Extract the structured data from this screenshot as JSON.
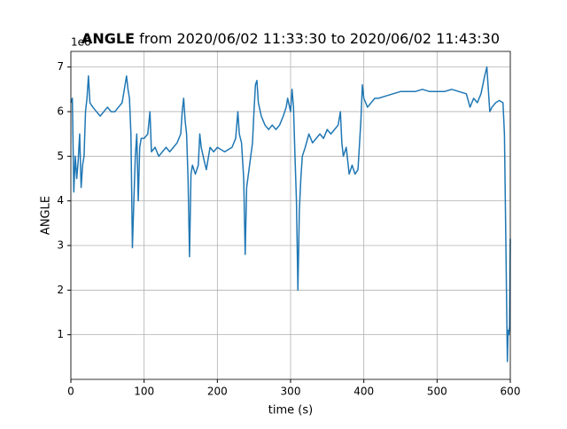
{
  "chart_data": {
    "type": "line",
    "title_bold": "ANGLE",
    "title": " from 2020/06/02 11:33:30 to 2020/06/02 11:43:30",
    "xlabel": "time (s)",
    "ylabel": "ANGLE",
    "y_offset_label": "1e6",
    "xlim": [
      0,
      600
    ],
    "xticks": [
      0,
      100,
      200,
      300,
      400,
      500,
      600
    ],
    "ylim": [
      0.0,
      7.35
    ],
    "yticks": [
      1,
      2,
      3,
      4,
      5,
      6,
      7
    ],
    "grid": true,
    "series": [
      {
        "color": "#1f77b4",
        "x": [
          0,
          2,
          4,
          6,
          8,
          10,
          12,
          14,
          16,
          18,
          20,
          22,
          24,
          26,
          30,
          35,
          40,
          45,
          50,
          55,
          60,
          65,
          70,
          74,
          76,
          78,
          80,
          82,
          84,
          86,
          88,
          90,
          92,
          94,
          96,
          100,
          105,
          108,
          110,
          115,
          120,
          125,
          130,
          135,
          140,
          145,
          150,
          152,
          154,
          156,
          158,
          160,
          162,
          164,
          166,
          170,
          174,
          176,
          178,
          182,
          185,
          190,
          195,
          200,
          210,
          220,
          225,
          228,
          230,
          233,
          236,
          238,
          240,
          244,
          248,
          250,
          252,
          254,
          256,
          260,
          265,
          270,
          275,
          280,
          285,
          290,
          294,
          296,
          300,
          302,
          304,
          306,
          308,
          310,
          312,
          314,
          316,
          320,
          325,
          330,
          335,
          340,
          345,
          350,
          355,
          360,
          365,
          368,
          370,
          372,
          376,
          380,
          384,
          388,
          392,
          396,
          398,
          400,
          405,
          410,
          415,
          420,
          430,
          440,
          450,
          460,
          470,
          480,
          490,
          500,
          510,
          520,
          530,
          540,
          545,
          550,
          555,
          560,
          565,
          568,
          570,
          572,
          575,
          580,
          585,
          590,
          592,
          594,
          596,
          597,
          598,
          599,
          600
        ],
        "values": [
          6.2,
          6.3,
          4.2,
          5.0,
          4.5,
          4.9,
          5.5,
          4.3,
          4.8,
          5.0,
          6.0,
          6.3,
          6.8,
          6.2,
          6.1,
          6.0,
          5.9,
          6.0,
          6.1,
          6.0,
          6.0,
          6.1,
          6.2,
          6.6,
          6.8,
          6.5,
          6.3,
          5.5,
          2.95,
          4.0,
          5.0,
          5.5,
          4.0,
          5.2,
          5.4,
          5.4,
          5.5,
          6.0,
          5.1,
          5.2,
          5.0,
          5.1,
          5.2,
          5.1,
          5.2,
          5.3,
          5.5,
          6.0,
          6.3,
          5.8,
          5.5,
          4.5,
          2.75,
          4.6,
          4.8,
          4.6,
          4.8,
          5.5,
          5.2,
          4.9,
          4.7,
          5.2,
          5.1,
          5.2,
          5.1,
          5.2,
          5.4,
          6.0,
          5.5,
          5.3,
          4.5,
          2.8,
          4.3,
          4.8,
          5.3,
          6.0,
          6.6,
          6.7,
          6.2,
          5.9,
          5.7,
          5.6,
          5.7,
          5.6,
          5.7,
          5.9,
          6.1,
          6.3,
          6.0,
          6.5,
          6.1,
          5.0,
          4.0,
          2.0,
          3.8,
          4.5,
          5.0,
          5.2,
          5.5,
          5.3,
          5.4,
          5.5,
          5.4,
          5.6,
          5.5,
          5.6,
          5.7,
          6.0,
          5.3,
          5.0,
          5.2,
          4.6,
          4.8,
          4.6,
          4.7,
          5.8,
          6.6,
          6.3,
          6.1,
          6.2,
          6.3,
          6.3,
          6.35,
          6.4,
          6.45,
          6.45,
          6.45,
          6.5,
          6.45,
          6.45,
          6.45,
          6.5,
          6.45,
          6.4,
          6.1,
          6.3,
          6.2,
          6.4,
          6.8,
          7.0,
          6.5,
          6.0,
          6.1,
          6.2,
          6.25,
          6.2,
          5.5,
          3.0,
          0.4,
          1.1,
          1.0,
          1.2,
          3.15
        ]
      }
    ]
  }
}
